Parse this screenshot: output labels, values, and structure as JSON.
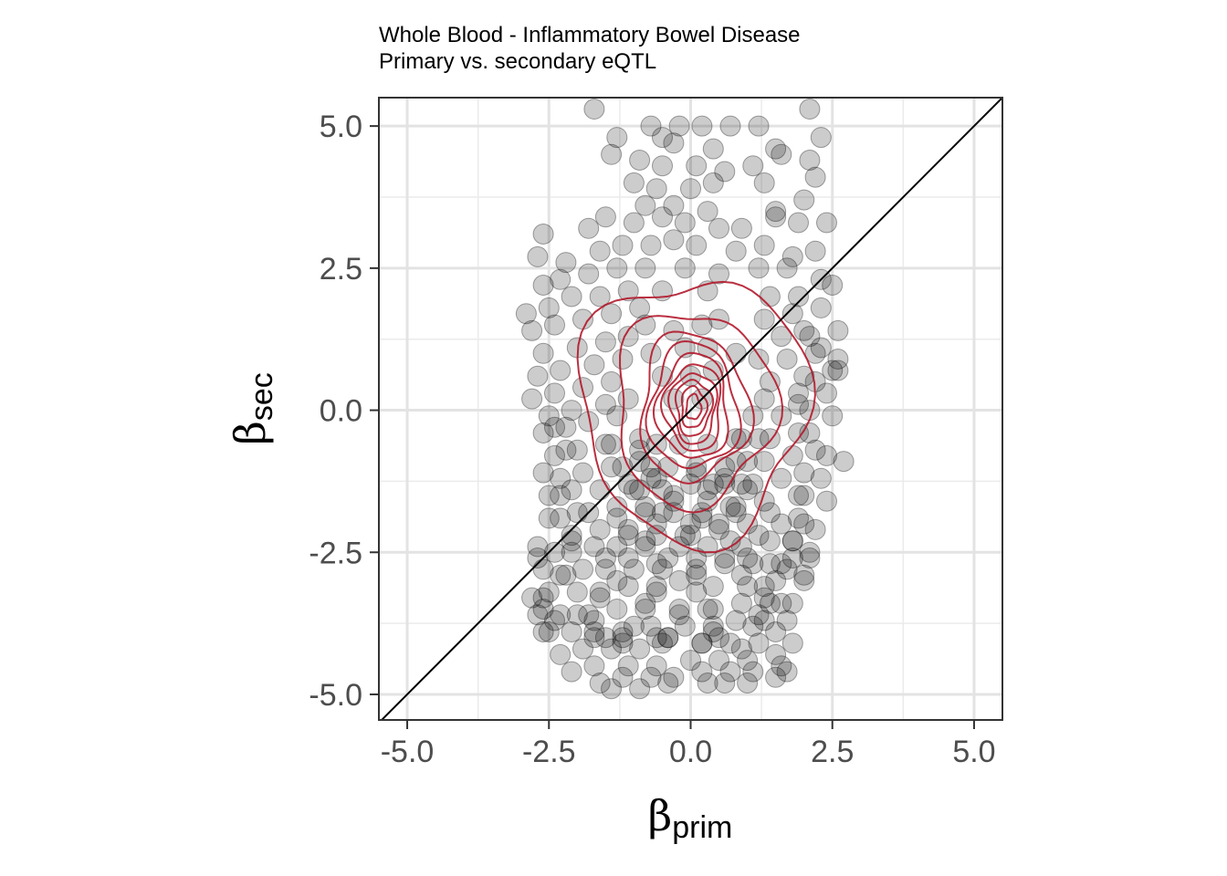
{
  "chart_data": {
    "type": "scatter",
    "title": "Whole Blood - Inflammatory Bowel Disease",
    "subtitle": "Primary vs. secondary eQTL",
    "xlabel": {
      "symbol": "β",
      "sub": "prim"
    },
    "ylabel": {
      "symbol": "β",
      "sub": "sec"
    },
    "xlim": [
      -5.5,
      5.5
    ],
    "ylim": [
      -5.45,
      5.5
    ],
    "xticks": [
      -5.0,
      -2.5,
      0.0,
      2.5,
      5.0
    ],
    "xtick_labels": [
      "-5.0",
      "-2.5",
      "0.0",
      "2.5",
      "5.0"
    ],
    "yticks": [
      -5.0,
      -2.5,
      0.0,
      2.5,
      5.0
    ],
    "ytick_labels": [
      "-5.0",
      "-2.5",
      "0.0",
      "2.5",
      "5.0"
    ],
    "grid": true,
    "reference_line": "y = x",
    "point_color": "#000000",
    "point_alpha": 0.2,
    "contour_color": "#b2182b",
    "series": [
      {
        "x": [
          -1.7,
          -0.7,
          -0.2,
          0.2,
          0.7,
          1.2,
          2.1,
          -1.3,
          -0.5,
          -0.3,
          0.4,
          1.5,
          2.3,
          -1.4,
          -0.9,
          -0.5,
          0.1,
          0.6,
          1.1,
          1.6,
          2.1,
          -1.0,
          -0.6,
          0.0,
          0.4,
          1.3,
          2.2,
          -0.8,
          -0.3,
          0.3,
          1.5,
          2.0,
          -2.6,
          -1.8,
          -1.5,
          -1.0,
          -0.5,
          -0.1,
          0.5,
          0.9,
          1.5,
          1.9,
          2.4,
          -2.7,
          -2.2,
          -1.6,
          -1.2,
          -0.7,
          -0.3,
          0.1,
          0.8,
          1.3,
          1.8,
          2.2,
          -2.6,
          -2.3,
          -1.8,
          -1.3,
          -0.8,
          -0.1,
          0.5,
          1.2,
          1.7,
          2.3,
          -2.9,
          -2.5,
          -2.1,
          -1.6,
          -1.1,
          -0.5,
          0.3,
          1.4,
          1.9,
          2.5,
          -2.8,
          -2.4,
          -1.9,
          -1.4,
          -0.9,
          1.3,
          1.8,
          2.3,
          -2.6,
          -2.0,
          -1.5,
          -1.1,
          1.6,
          2.1,
          2.6,
          -2.7,
          -2.3,
          -1.7,
          -1.2,
          1.2,
          1.7,
          2.2,
          2.6,
          -2.8,
          -2.4,
          -1.9,
          -1.4,
          1.4,
          2.0,
          2.5,
          -2.5,
          -2.1,
          -1.5,
          -1.1,
          1.3,
          1.9,
          2.4,
          -2.6,
          -2.2,
          -1.8,
          -1.3,
          1.1,
          1.6,
          2.1,
          -2.4,
          -2.0,
          -1.5,
          -0.9,
          0.9,
          1.4,
          1.9,
          -2.3,
          -1.9,
          -1.4,
          -0.9,
          0.8,
          1.3,
          1.8,
          2.2,
          -2.5,
          -2.1,
          -1.6,
          -1.1,
          -0.6,
          0.6,
          1.1,
          1.6,
          2.0,
          -2.3,
          -1.8,
          -1.3,
          -0.8,
          -0.3,
          0.3,
          0.8,
          1.3,
          1.9,
          -2.1,
          -1.6,
          -1.1,
          -0.6,
          0.0,
          0.5,
          1.0,
          1.6,
          2.0,
          -2.7,
          -2.4,
          -2.1,
          -1.7,
          -1.3,
          -0.8,
          -0.2,
          0.3,
          0.9,
          1.4,
          1.8,
          -2.6,
          -2.2,
          -1.9,
          -1.5,
          -1.0,
          -0.5,
          0.1,
          0.6,
          1.1,
          1.6,
          2.1,
          -2.8,
          -2.5,
          -2.0,
          -1.6,
          -1.1,
          -0.6,
          0.4,
          1.0,
          1.5,
          2.0,
          -2.7,
          -2.3,
          -1.8,
          -1.3,
          -0.8,
          -0.2,
          0.3,
          0.9,
          1.4,
          1.8,
          -2.6,
          -2.1,
          -1.7,
          -1.2,
          -0.7,
          -0.1,
          0.4,
          0.8,
          1.3,
          1.7,
          -2.3,
          -1.9,
          -1.4,
          -0.9,
          -0.5,
          0.2,
          0.7,
          1.2,
          -2.1,
          -1.7,
          -1.1,
          -0.6,
          0.0,
          0.5,
          1.0,
          1.5,
          -1.6,
          -1.2,
          -0.7,
          -0.3,
          0.2,
          0.7,
          1.1,
          1.6,
          -1.4,
          -0.9,
          -0.4,
          0.3,
          0.6,
          1.0,
          1.5,
          -0.8,
          -0.3,
          0.2,
          0.5,
          -0.7,
          -0.1,
          0.3,
          0.8,
          -0.5,
          0.0,
          0.4,
          -0.3,
          0.2,
          -1.4,
          -0.9,
          -0.6,
          -0.2,
          0.3,
          0.8,
          1.2,
          -1.2,
          -0.7,
          -0.4,
          0.1,
          0.6,
          1.0,
          -1.0,
          -0.5,
          0.0,
          0.4,
          0.9,
          -0.8,
          -0.3,
          0.2,
          0.7,
          -0.6,
          -0.1,
          0.5,
          -0.4,
          0.1,
          2.0,
          2.3,
          2.6,
          2.2,
          1.9,
          2.5,
          2.1,
          2.4,
          2.7,
          2.3,
          2.0,
          2.4,
          1.9,
          2.2,
          1.8,
          2.1,
          -2.4,
          -2.2,
          -2.6,
          -2.3,
          -2.0,
          -2.5,
          -2.1,
          -2.7,
          -2.3,
          -2.6,
          -2.0,
          -1.7,
          -1.5,
          -1.2,
          -0.4,
          0.4,
          1.2,
          1.5,
          1.8,
          -1.6,
          -1.3,
          -0.2,
          0.1,
          0.9,
          1.3,
          -1.5,
          -1.1,
          -0.6,
          0.6,
          1.0,
          1.4,
          1.7,
          -1.1,
          -0.8,
          0.0,
          0.7,
          1.2,
          -1.3,
          -0.5,
          0.2,
          0.8,
          1.4,
          -0.9,
          -0.3,
          0.3,
          1.0,
          -0.7,
          0.1,
          0.6,
          1.8,
          2.0,
          1.3,
          1.6,
          -2.5,
          -2.6,
          -2.4,
          -1.7,
          -1.2,
          -0.6,
          0.2,
          0.9,
          1.7,
          -1.0,
          -0.4,
          0.5,
          1.1,
          -0.8,
          -0.2,
          0.4,
          -0.6,
          0.1
        ],
        "y": [
          5.3,
          5.0,
          5.0,
          5.0,
          5.0,
          5.0,
          5.3,
          4.8,
          4.8,
          4.7,
          4.6,
          4.6,
          4.8,
          4.5,
          4.4,
          4.3,
          4.3,
          4.2,
          4.3,
          4.5,
          4.4,
          4.0,
          3.9,
          3.9,
          4.0,
          4.0,
          4.1,
          3.6,
          3.6,
          3.5,
          3.5,
          3.7,
          3.1,
          3.2,
          3.4,
          3.3,
          3.4,
          3.3,
          3.2,
          3.2,
          3.4,
          3.3,
          3.3,
          2.7,
          2.6,
          2.8,
          2.9,
          2.9,
          3.0,
          2.9,
          2.8,
          2.9,
          2.7,
          2.8,
          2.2,
          2.3,
          2.4,
          2.5,
          2.5,
          2.5,
          2.4,
          2.5,
          2.5,
          2.3,
          1.7,
          1.8,
          2.0,
          2.0,
          2.1,
          2.1,
          2.1,
          2.0,
          2.0,
          2.2,
          1.4,
          1.5,
          1.6,
          1.7,
          1.8,
          1.6,
          1.7,
          1.8,
          1.0,
          1.1,
          1.2,
          1.3,
          1.3,
          1.3,
          1.4,
          0.6,
          0.7,
          0.8,
          0.9,
          0.9,
          0.9,
          1.0,
          0.9,
          0.2,
          0.3,
          0.4,
          0.5,
          0.5,
          0.6,
          0.7,
          -0.1,
          0.0,
          0.1,
          0.2,
          0.2,
          0.3,
          0.3,
          -0.4,
          -0.3,
          -0.2,
          -0.1,
          -0.1,
          -0.1,
          0.0,
          -0.8,
          -0.7,
          -0.6,
          -0.5,
          -0.5,
          -0.5,
          -0.4,
          -1.2,
          -1.1,
          -1.0,
          -0.9,
          -0.9,
          -0.9,
          -0.8,
          -0.7,
          -1.5,
          -1.4,
          -1.4,
          -1.3,
          -1.2,
          -1.3,
          -1.3,
          -1.2,
          -1.1,
          -1.9,
          -1.8,
          -1.7,
          -1.7,
          -1.6,
          -1.6,
          -1.7,
          -1.6,
          -1.5,
          -2.2,
          -2.1,
          -2.1,
          -2.0,
          -2.0,
          -2.0,
          -2.0,
          -2.0,
          -2.0,
          -2.4,
          -2.5,
          -2.5,
          -2.4,
          -2.4,
          -2.4,
          -2.4,
          -2.4,
          -2.4,
          -2.3,
          -2.3,
          -2.8,
          -2.9,
          -2.8,
          -2.8,
          -2.8,
          -2.8,
          -2.8,
          -2.7,
          -2.7,
          -2.7,
          -2.6,
          -3.3,
          -3.2,
          -3.2,
          -3.2,
          -3.1,
          -3.1,
          -3.1,
          -3.1,
          -3.0,
          -3.0,
          -3.6,
          -3.6,
          -3.6,
          -3.5,
          -3.5,
          -3.5,
          -3.5,
          -3.4,
          -3.4,
          -3.4,
          -3.9,
          -3.9,
          -3.9,
          -3.9,
          -3.8,
          -3.8,
          -3.8,
          -3.7,
          -3.7,
          -3.7,
          -4.3,
          -4.2,
          -4.2,
          -4.2,
          -4.1,
          -4.1,
          -4.1,
          -4.1,
          -4.6,
          -4.5,
          -4.5,
          -4.5,
          -4.4,
          -4.4,
          -4.4,
          -4.3,
          -4.8,
          -4.7,
          -4.7,
          -4.7,
          -4.6,
          -4.6,
          -4.6,
          -4.5,
          -4.9,
          -4.9,
          -4.8,
          -4.8,
          -4.8,
          -4.8,
          -4.7,
          1.5,
          1.4,
          1.5,
          1.6,
          1.0,
          1.1,
          1.1,
          1.0,
          0.6,
          0.6,
          0.7,
          0.2,
          0.2,
          -0.6,
          -0.7,
          -0.6,
          -0.6,
          -0.6,
          -0.5,
          -0.5,
          -1.0,
          -1.0,
          -1.0,
          -1.0,
          -1.0,
          -0.9,
          -1.4,
          -1.4,
          -1.3,
          -1.3,
          -1.3,
          -1.8,
          -1.8,
          -1.8,
          -1.7,
          -2.2,
          -2.2,
          -2.1,
          -2.6,
          -2.6,
          1.4,
          1.1,
          0.7,
          0.5,
          0.1,
          -0.1,
          -0.4,
          -0.8,
          -0.9,
          -1.2,
          -1.5,
          -1.6,
          -1.9,
          -2.1,
          -2.3,
          -2.5,
          -0.3,
          -0.7,
          -1.1,
          -1.5,
          -1.8,
          -1.9,
          -2.3,
          -2.6,
          -2.9,
          -3.3,
          -3.6,
          -3.7,
          -4.0,
          -4.1,
          -4.0,
          -3.9,
          -3.6,
          -3.9,
          -4.1,
          -3.3,
          -3.0,
          -3.0,
          -2.9,
          -2.9,
          -3.1,
          -2.6,
          -2.6,
          -2.7,
          -2.6,
          -2.6,
          -2.7,
          -2.8,
          -2.2,
          -2.3,
          -2.2,
          -2.3,
          -2.2,
          -1.9,
          -1.8,
          -1.9,
          -1.8,
          -1.8,
          -1.4,
          -1.5,
          -1.4,
          -1.4,
          -1.2,
          -1.1,
          -1.2,
          -2.6,
          -2.9,
          -3.3,
          -3.4,
          -3.9,
          -3.5,
          -3.7,
          -4.0,
          -4.0,
          -4.0,
          -4.1,
          -4.2,
          -4.6,
          -3.8,
          -4.0,
          -4.0,
          -3.8,
          -3.4,
          -3.6,
          -3.5,
          -3.2,
          -3.2
        ]
      }
    ],
    "density_contours": {
      "levels": 10,
      "levels_description": "2D kernel density, nested rings centered near (0.0, 0.0)",
      "center": [
        0.05,
        0.05
      ],
      "rings": [
        {
          "rx": 2.0,
          "ry": 2.3
        },
        {
          "rx": 1.4,
          "ry": 1.7
        },
        {
          "rx": 0.95,
          "ry": 1.3
        },
        {
          "rx": 0.78,
          "ry": 1.1
        },
        {
          "rx": 0.62,
          "ry": 0.92
        },
        {
          "rx": 0.5,
          "ry": 0.76
        },
        {
          "rx": 0.4,
          "ry": 0.62
        },
        {
          "rx": 0.31,
          "ry": 0.49
        },
        {
          "rx": 0.22,
          "ry": 0.36
        },
        {
          "rx": 0.13,
          "ry": 0.22
        }
      ]
    }
  }
}
